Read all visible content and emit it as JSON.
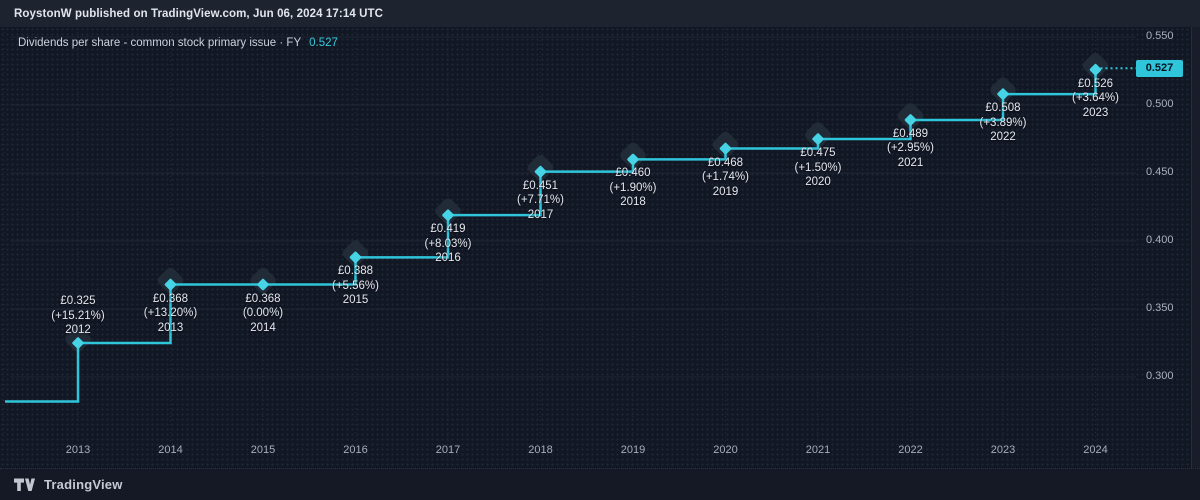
{
  "header": {
    "publisher_line": "RoystonW published on TradingView.com, Jun 06, 2024 17:14 UTC"
  },
  "chart_title": {
    "label": "Dividends per share - common stock primary issue · FY",
    "value": "0.527"
  },
  "footer": {
    "brand": "TradingView"
  },
  "colors": {
    "accent": "#2fc5da",
    "diamond": "#45d3e5",
    "halo": "#242d3a",
    "grid": "#222a3a",
    "badge_bg": "#2fc5da",
    "badge_text": "#0a1420",
    "label_text": "#e4e7ee",
    "axis_text": "#abb1bd"
  },
  "chart_data": {
    "type": "line",
    "subtype": "step-line-with-diamond-markers",
    "title": "Dividends per share - common stock primary issue · FY 0.527",
    "xlabel": "",
    "ylabel": "",
    "grid": true,
    "legend_position": "none",
    "ylim": [
      0.253,
      0.557
    ],
    "points": [
      {
        "year": "2012",
        "value": 0.325,
        "value_label": "£0.325",
        "change_label": "(+15.21%)",
        "label_position": "above"
      },
      {
        "year": "2013",
        "value": 0.368,
        "value_label": "£0.368",
        "change_label": "(+13.20%)",
        "label_position": "below"
      },
      {
        "year": "2014",
        "value": 0.368,
        "value_label": "£0.368",
        "change_label": "(0.00%)",
        "label_position": "below"
      },
      {
        "year": "2015",
        "value": 0.388,
        "value_label": "£0.388",
        "change_label": "(+5.56%)",
        "label_position": "below"
      },
      {
        "year": "2016",
        "value": 0.419,
        "value_label": "£0.419",
        "change_label": "(+8.03%)",
        "label_position": "below"
      },
      {
        "year": "2017",
        "value": 0.451,
        "value_label": "£0.451",
        "change_label": "(+7.71%)",
        "label_position": "below"
      },
      {
        "year": "2018",
        "value": 0.46,
        "value_label": "£0.460",
        "change_label": "(+1.90%)",
        "label_position": "below"
      },
      {
        "year": "2019",
        "value": 0.468,
        "value_label": "£0.468",
        "change_label": "(+1.74%)",
        "label_position": "below"
      },
      {
        "year": "2020",
        "value": 0.475,
        "value_label": "£0.475",
        "change_label": "(+1.50%)",
        "label_position": "below"
      },
      {
        "year": "2021",
        "value": 0.489,
        "value_label": "£0.489",
        "change_label": "(+2.95%)",
        "label_position": "below"
      },
      {
        "year": "2022",
        "value": 0.508,
        "value_label": "£0.508",
        "change_label": "(+3.89%)",
        "label_position": "below"
      },
      {
        "year": "2023",
        "value": 0.526,
        "value_label": "£0.526",
        "change_label": "(+3.64%)",
        "label_position": "below"
      }
    ],
    "leadin_value": 0.282,
    "last_price": {
      "value": 0.527,
      "label": "0.527"
    },
    "x_ticks": [
      "2013",
      "2014",
      "2015",
      "2016",
      "2017",
      "2018",
      "2019",
      "2020",
      "2021",
      "2022",
      "2023",
      "2024"
    ],
    "y_ticks": [
      {
        "value": 0.55,
        "label": "0.550"
      },
      {
        "value": 0.5,
        "label": "0.500"
      },
      {
        "value": 0.45,
        "label": "0.450"
      },
      {
        "value": 0.4,
        "label": "0.400"
      },
      {
        "value": 0.35,
        "label": "0.350"
      },
      {
        "value": 0.3,
        "label": "0.300"
      }
    ]
  }
}
